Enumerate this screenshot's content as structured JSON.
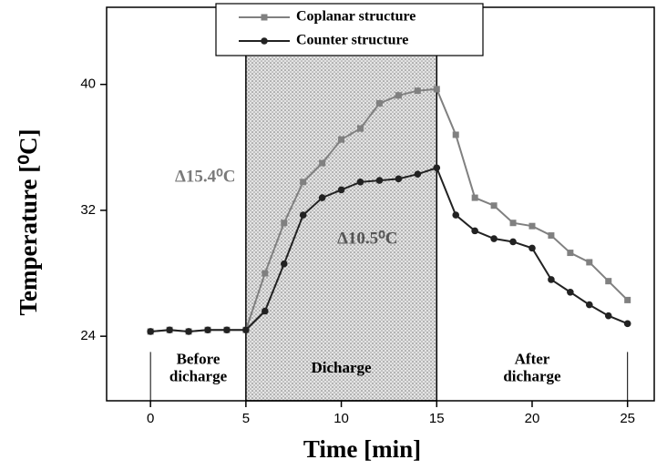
{
  "chart_data": {
    "type": "line",
    "xlabel": "Time [min]",
    "ylabel": "Temperature [⁰C]",
    "x": [
      0,
      1,
      2,
      3,
      4,
      5,
      6,
      7,
      8,
      9,
      10,
      11,
      12,
      13,
      14,
      15,
      16,
      17,
      18,
      19,
      20,
      21,
      22,
      23,
      24,
      25
    ],
    "series": [
      {
        "name": "Coplanar structure",
        "color": "#808080",
        "marker": "square",
        "values": [
          24.3,
          24.4,
          24.3,
          24.4,
          24.4,
          24.4,
          28.0,
          31.2,
          33.8,
          35.0,
          36.5,
          37.2,
          38.8,
          39.3,
          39.6,
          39.7,
          36.8,
          32.8,
          32.3,
          31.2,
          31.0,
          30.4,
          29.3,
          28.7,
          27.5,
          26.3
        ]
      },
      {
        "name": "Counter structure",
        "color": "#222222",
        "marker": "circle",
        "values": [
          24.3,
          24.4,
          24.3,
          24.4,
          24.4,
          24.4,
          25.6,
          28.6,
          31.7,
          32.8,
          33.3,
          33.8,
          33.9,
          34.0,
          34.3,
          34.7,
          31.7,
          30.7,
          30.2,
          30.0,
          29.6,
          27.6,
          26.8,
          26.0,
          25.3,
          24.8
        ]
      }
    ],
    "xlim": [
      -2.3,
      26.4
    ],
    "ylim": [
      19.9,
      44.9
    ],
    "xticks": [
      0,
      5,
      10,
      15,
      20,
      25
    ],
    "yticks": [
      24,
      32,
      40
    ],
    "shaded_span": [
      5,
      15
    ],
    "phase_labels": [
      [
        "Before",
        "dicharge"
      ],
      [
        "Dicharge"
      ],
      [
        "After",
        "dicharge"
      ]
    ],
    "annotations": [
      "Δ15.4⁰C",
      "Δ10.5⁰C"
    ],
    "legend": "upper center"
  }
}
